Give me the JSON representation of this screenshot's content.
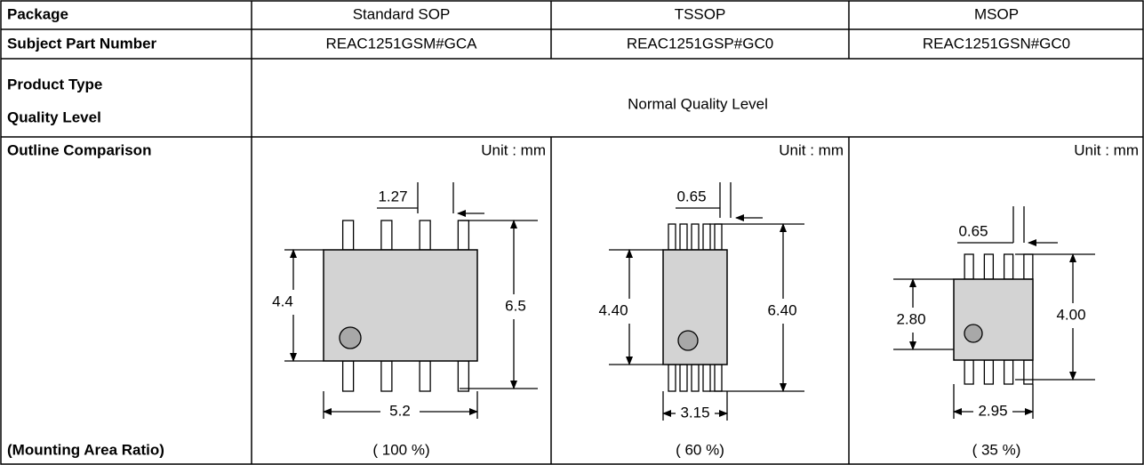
{
  "labels": {
    "package": "Package",
    "part_number": "Subject Part Number",
    "product_type": "Product Type",
    "quality_level": "Quality Level",
    "outline": "Outline Comparison",
    "area_ratio": "(Mounting Area Ratio)"
  },
  "quality": "Normal Quality Level",
  "packages": [
    {
      "name": "Standard SOP",
      "part_number": "REAC1251GSM#GCA",
      "unit": "Unit : mm",
      "pitch": "1.27",
      "body_height": "4.4",
      "total_height": "6.5",
      "body_width": "5.2",
      "area_ratio": "( 100 %)"
    },
    {
      "name": "TSSOP",
      "part_number": "REAC1251GSP#GC0",
      "unit": "Unit : mm",
      "pitch": "0.65",
      "body_height": "4.40",
      "total_height": "6.40",
      "body_width": "3.15",
      "area_ratio": "( 60 %)"
    },
    {
      "name": "MSOP",
      "part_number": "REAC1251GSN#GC0",
      "unit": "Unit : mm",
      "pitch": "0.65",
      "body_height": "2.80",
      "total_height": "4.00",
      "body_width": "2.95",
      "area_ratio": "( 35 %)"
    }
  ]
}
